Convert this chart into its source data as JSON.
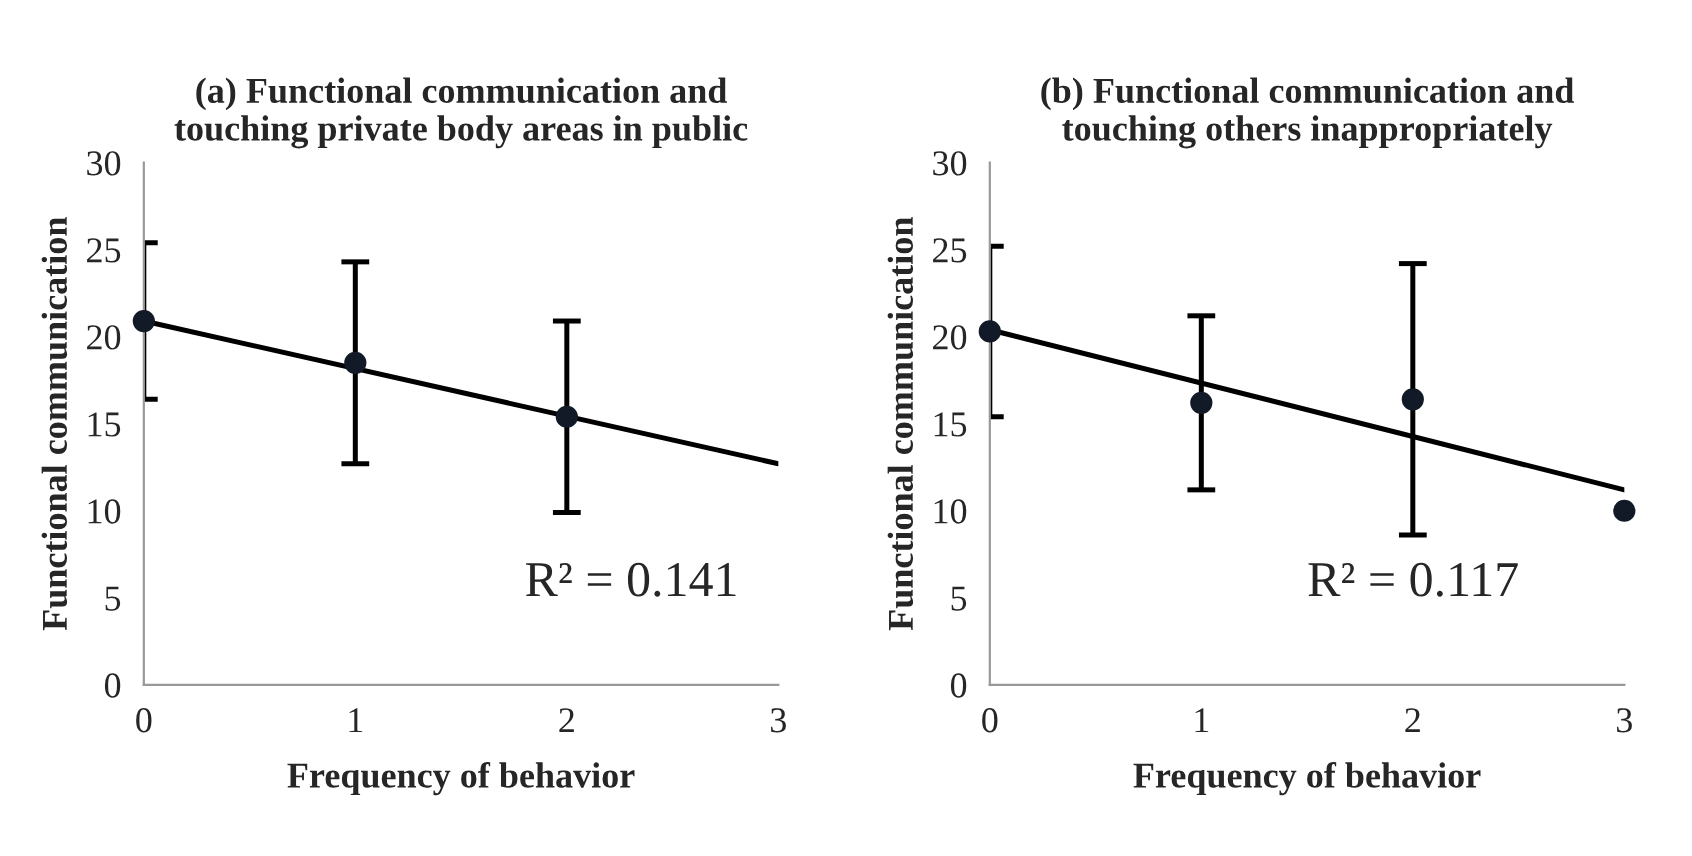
{
  "chart_data": [
    {
      "type": "scatter",
      "title": "(a) Functional communication and\ntouching private body areas in public",
      "xlabel": "Frequency of behavior",
      "ylabel": "Functional communication",
      "xlim": [
        0,
        3
      ],
      "xticks": [
        0,
        1,
        2,
        3
      ],
      "ylim": [
        0,
        30
      ],
      "yticks": [
        0,
        5,
        10,
        15,
        20,
        25,
        30
      ],
      "grid": false,
      "annotations": [
        "R² = 0.141"
      ],
      "series": [
        {
          "color": "#111a26",
          "marker": "circle",
          "x": [
            0,
            1,
            2
          ],
          "values": [
            20.9,
            18.5,
            15.4
          ],
          "errors": [
            4.5,
            5.8,
            5.5
          ]
        },
        {
          "type": "line",
          "marker": "none",
          "color": "#000000",
          "x": [
            0,
            3
          ],
          "values": [
            20.9,
            12.7
          ]
        }
      ]
    },
    {
      "type": "scatter",
      "title": "(b) Functional communication and\ntouching others inappropriately",
      "xlabel": "Frequency of behavior",
      "ylabel": "Functional communication",
      "xlim": [
        0,
        3
      ],
      "xticks": [
        0,
        1,
        2,
        3
      ],
      "ylim": [
        0,
        30
      ],
      "yticks": [
        0,
        5,
        10,
        15,
        20,
        25,
        30
      ],
      "grid": false,
      "annotations": [
        "R² = 0.117"
      ],
      "series": [
        {
          "color": "#111a26",
          "marker": "circle",
          "x": [
            0,
            1,
            2,
            3
          ],
          "values": [
            20.3,
            16.2,
            16.4,
            10.0
          ],
          "errors": [
            4.9,
            5.0,
            7.8,
            null
          ]
        },
        {
          "type": "line",
          "marker": "none",
          "color": "#000000",
          "x": [
            0,
            3
          ],
          "values": [
            20.4,
            11.2
          ]
        }
      ]
    }
  ]
}
